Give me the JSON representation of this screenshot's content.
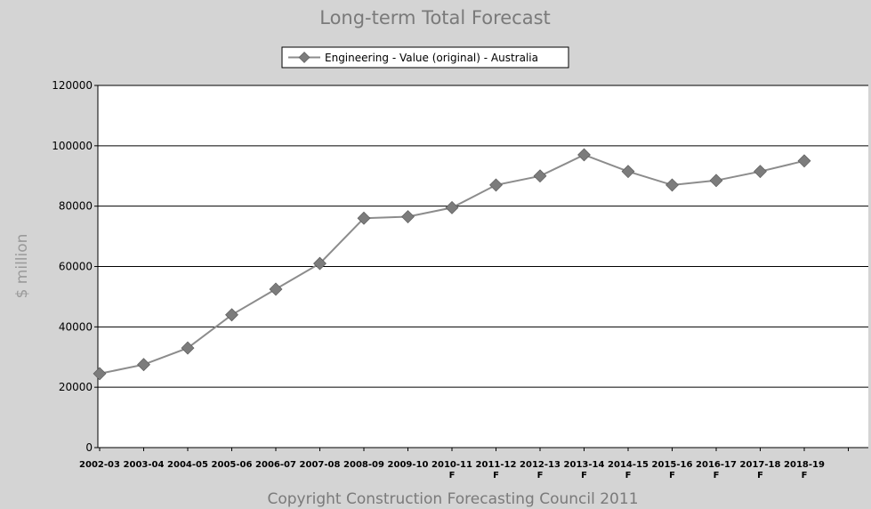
{
  "chart_data": {
    "type": "line",
    "title": "Long-term Total Forecast",
    "ylabel": "$ million",
    "xlabel": "",
    "footer": "Copyright Construction Forecasting Council 2011",
    "ylim": [
      0,
      120000
    ],
    "yticks": [
      "0",
      "20000",
      "40000",
      "60000",
      "80000",
      "100000",
      "120000"
    ],
    "grid": true,
    "legend_position": "top",
    "categories": [
      [
        "2002-03"
      ],
      [
        "2003-04"
      ],
      [
        "2004-05"
      ],
      [
        "2005-06"
      ],
      [
        "2006-07"
      ],
      [
        "2007-08"
      ],
      [
        "2008-09"
      ],
      [
        "2009-10"
      ],
      [
        "2010-11",
        "F"
      ],
      [
        "2011-12",
        "F"
      ],
      [
        "2012-13",
        "F"
      ],
      [
        "2013-14",
        "F"
      ],
      [
        "2014-15",
        "F"
      ],
      [
        "2015-16",
        "F"
      ],
      [
        "2016-17",
        "F"
      ],
      [
        "2017-18",
        "F"
      ],
      [
        "2018-19",
        "F"
      ]
    ],
    "series": [
      {
        "name": "Engineering - Value (original) - Australia",
        "color": "#8c8c8c",
        "marker_color": "#7c7c7c",
        "values": [
          24500,
          27500,
          33000,
          44000,
          52500,
          61000,
          76000,
          76500,
          79500,
          87000,
          90000,
          97000,
          91500,
          87000,
          88500,
          91500,
          95000
        ]
      }
    ]
  }
}
